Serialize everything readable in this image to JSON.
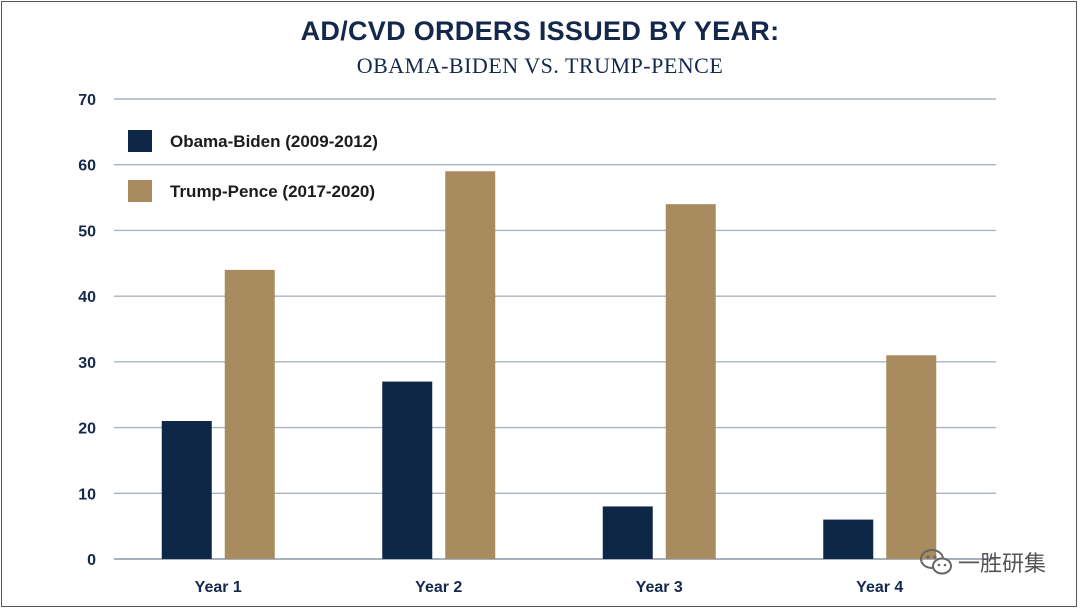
{
  "chart_data": {
    "type": "bar",
    "title": "AD/CVD ORDERS ISSUED BY YEAR:",
    "subtitle": "OBAMA-BIDEN VS. TRUMP-PENCE",
    "categories": [
      "Year 1",
      "Year 2",
      "Year 3",
      "Year 4"
    ],
    "series": [
      {
        "name": "Obama-Biden (2009-2012)",
        "values": [
          21,
          27,
          8,
          6
        ],
        "color": "#0f2747"
      },
      {
        "name": "Trump-Pence (2017-2020)",
        "values": [
          44,
          59,
          54,
          31
        ],
        "color": "#a88c5f"
      }
    ],
    "ylim": [
      0,
      70
    ],
    "yticks": [
      0,
      10,
      20,
      30,
      40,
      50,
      60,
      70
    ],
    "xlabel": "",
    "ylabel": "",
    "grid": true,
    "legend_position": "top-left"
  },
  "watermark": {
    "text": "一胜研集",
    "icon": "wechat-icon"
  }
}
